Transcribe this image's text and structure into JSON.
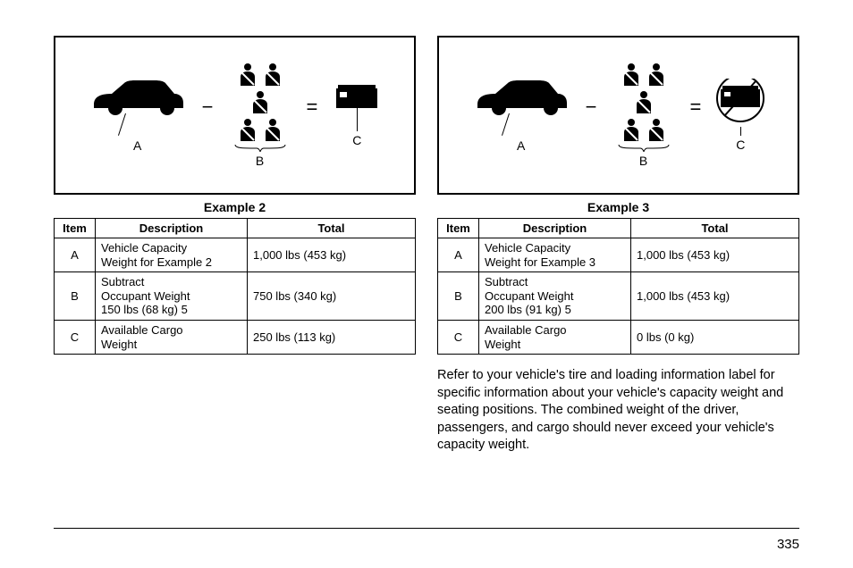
{
  "left": {
    "caption": "Example 2",
    "diagram": {
      "labelA": "A",
      "labelB": "B",
      "labelC": "C",
      "minus": "−",
      "equals": "="
    },
    "table": {
      "headers": [
        "Item",
        "Description",
        "Total"
      ],
      "rows": [
        {
          "item": "A",
          "desc": "Vehicle Capacity\nWeight for Example 2",
          "total": "1,000 lbs (453 kg)"
        },
        {
          "item": "B",
          "desc": "Subtract\nOccupant Weight\n150 lbs (68 kg)    5",
          "total": "750 lbs (340 kg)"
        },
        {
          "item": "C",
          "desc": "Available Cargo\nWeight",
          "total": "250 lbs (113 kg)"
        }
      ]
    }
  },
  "right": {
    "caption": "Example 3",
    "diagram": {
      "labelA": "A",
      "labelB": "B",
      "labelC": "C",
      "minus": "−",
      "equals": "=",
      "crossed": true
    },
    "table": {
      "headers": [
        "Item",
        "Description",
        "Total"
      ],
      "rows": [
        {
          "item": "A",
          "desc": "Vehicle Capacity\nWeight for Example 3",
          "total": "1,000 lbs (453 kg)"
        },
        {
          "item": "B",
          "desc": "Subtract\nOccupant Weight\n200 lbs (91 kg)    5",
          "total": "1,000 lbs (453 kg)"
        },
        {
          "item": "C",
          "desc": "Available Cargo\nWeight",
          "total": "0 lbs (0 kg)"
        }
      ]
    },
    "paragraph": "Refer to your vehicle's tire and loading information label for specific information about your vehicle's capacity weight and seating positions. The combined weight of the driver, passengers, and cargo should never exceed your vehicle's capacity weight."
  },
  "pageNumber": "335"
}
